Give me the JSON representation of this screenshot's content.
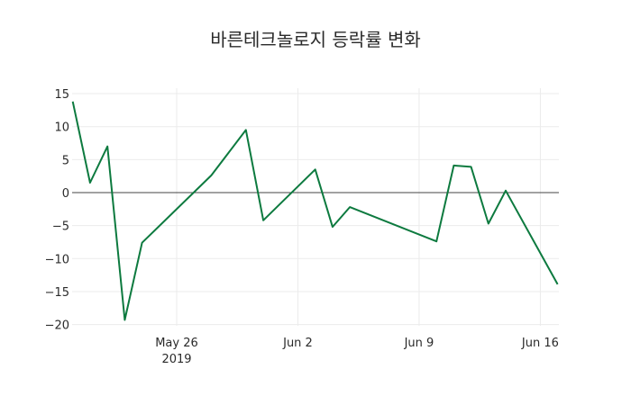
{
  "chart_data": {
    "type": "line",
    "title": "바른테크놀로지 등락률 변화",
    "xlabel": "",
    "ylabel": "",
    "ylim": [
      -21,
      16
    ],
    "grid": true,
    "legend": null,
    "line_color": "#0d7a3f",
    "x_ticks": [
      {
        "label": "May 26",
        "sub": "2019",
        "date": "2019-05-26"
      },
      {
        "label": "Jun 2",
        "date": "2019-06-02"
      },
      {
        "label": "Jun 9",
        "date": "2019-06-09"
      },
      {
        "label": "Jun 16",
        "date": "2019-06-16"
      }
    ],
    "y_ticks": [
      15,
      10,
      5,
      0,
      -5,
      -10,
      -15,
      -20
    ],
    "y_tick_labels": [
      "15",
      "10",
      "5",
      "0",
      "−5",
      "−10",
      "−15",
      "−20"
    ],
    "x": [
      "2019-05-20",
      "2019-05-21",
      "2019-05-22",
      "2019-05-23",
      "2019-05-24",
      "2019-05-28",
      "2019-05-30",
      "2019-05-31",
      "2019-06-03",
      "2019-06-04",
      "2019-06-05",
      "2019-06-10",
      "2019-06-11",
      "2019-06-12",
      "2019-06-13",
      "2019-06-14",
      "2019-06-17"
    ],
    "series": [
      {
        "name": "등락률",
        "values": [
          13.8,
          1.5,
          7.0,
          -19.3,
          -7.6,
          2.6,
          9.5,
          -4.2,
          3.5,
          -5.2,
          -2.2,
          -7.4,
          4.1,
          3.9,
          -4.7,
          0.3,
          -13.9
        ]
      }
    ]
  }
}
